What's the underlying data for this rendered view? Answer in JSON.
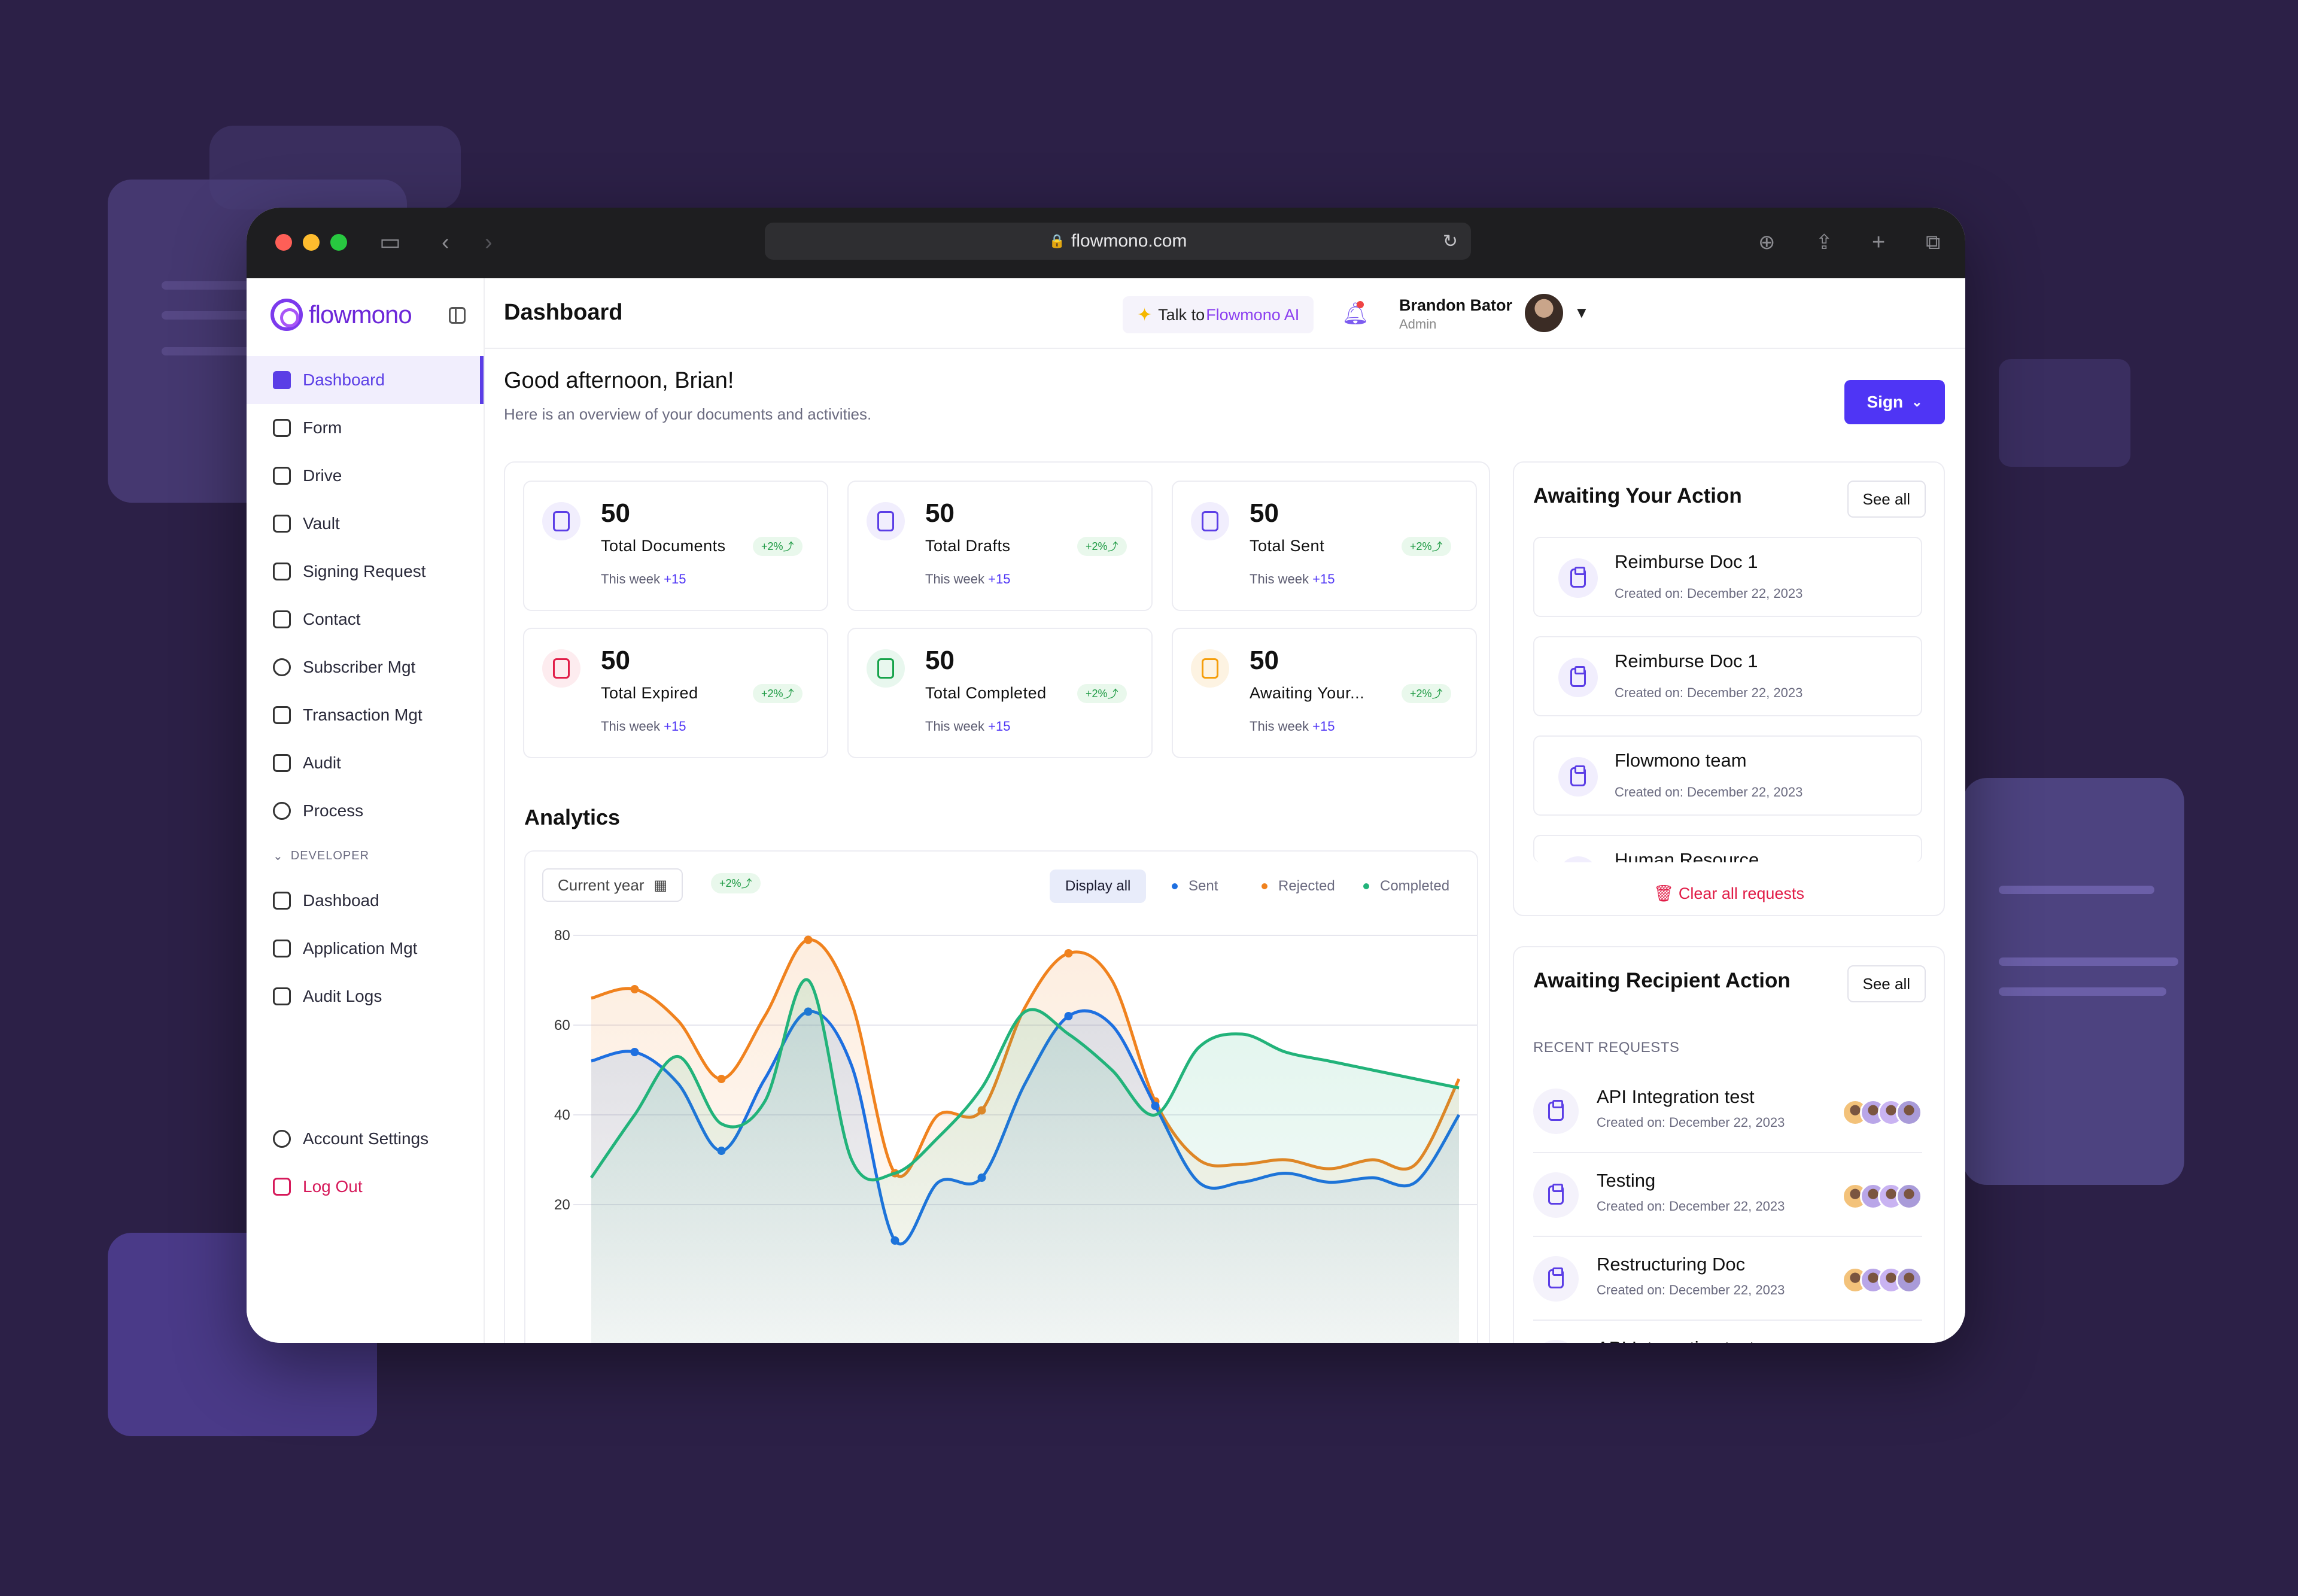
{
  "browser": {
    "url": "flowmono.com"
  },
  "app": {
    "logo_text": "flowmono",
    "page_title": "Dashboard"
  },
  "sidebar": {
    "items": [
      {
        "label": "Dashboard",
        "icon": "home-icon",
        "active": true
      },
      {
        "label": "Form",
        "icon": "clipboard-icon"
      },
      {
        "label": "Drive",
        "icon": "drive-icon"
      },
      {
        "label": "Vault",
        "icon": "lock-icon"
      },
      {
        "label": "Signing Request",
        "icon": "signature-icon"
      },
      {
        "label": "Contact",
        "icon": "contact-icon"
      },
      {
        "label": "Subscriber  Mgt",
        "icon": "user-gear-icon"
      },
      {
        "label": "Transaction Mgt",
        "icon": "receipt-icon"
      },
      {
        "label": "Audit",
        "icon": "checklist-icon"
      },
      {
        "label": "Process",
        "icon": "process-icon"
      }
    ],
    "developer_section": "DEVELOPER",
    "developer_items": [
      {
        "label": "Dashboad",
        "icon": "home-outline-icon"
      },
      {
        "label": "Application Mgt",
        "icon": "app-code-icon"
      },
      {
        "label": "Audit Logs",
        "icon": "clipboard-list-icon"
      }
    ],
    "account_settings": "Account Settings",
    "logout": "Log Out"
  },
  "header": {
    "ai_prefix": "Talk to ",
    "ai_brand": "Flowmono AI",
    "user_name": "Brandon Bator",
    "user_role": "Admin"
  },
  "welcome": {
    "greeting": "Good afternoon, Brian!",
    "subtitle": "Here is an overview of your documents and activities.",
    "sign_label": "Sign"
  },
  "stats": [
    {
      "value": "50",
      "label": "Total  Documents",
      "badge": "+2%",
      "week": "This week",
      "delta": "+15",
      "color": "#5b3ee6",
      "bg": "#f1eefd"
    },
    {
      "value": "50",
      "label": "Total  Drafts",
      "badge": "+2%",
      "week": "This week",
      "delta": "+15",
      "color": "#5b3ee6",
      "bg": "#f1eefd"
    },
    {
      "value": "50",
      "label": "Total  Sent",
      "badge": "+2%",
      "week": "This week",
      "delta": "+15",
      "color": "#5b3ee6",
      "bg": "#f1eefd"
    },
    {
      "value": "50",
      "label": "Total  Expired",
      "badge": "+2%",
      "week": "This week",
      "delta": "+15",
      "color": "#e11d48",
      "bg": "#fdecef"
    },
    {
      "value": "50",
      "label": "Total  Completed",
      "badge": "+2%",
      "week": "This week",
      "delta": "+15",
      "color": "#16a34a",
      "bg": "#e8f7ee"
    },
    {
      "value": "50",
      "label": "Awaiting Your...",
      "badge": "+2%",
      "week": "This week",
      "delta": "+15",
      "color": "#f59e0b",
      "bg": "#fdf3e2"
    }
  ],
  "analytics": {
    "title": "Analytics",
    "period": "Current year",
    "badge": "+2%",
    "display_all": "Display all",
    "legend": [
      {
        "name": "Sent",
        "color": "#1d6fe0"
      },
      {
        "name": "Rejected",
        "color": "#f0821e"
      },
      {
        "name": "Completed",
        "color": "#22b37a"
      }
    ]
  },
  "chart_data": {
    "type": "area",
    "y_ticks": [
      "80",
      "60",
      "40",
      "20"
    ],
    "ylim": [
      0,
      80
    ],
    "grid": true,
    "series": [
      {
        "name": "Rejected",
        "color": "#f0821e",
        "x": [
          0,
          5,
          10,
          15,
          20,
          25,
          30,
          35,
          40,
          45,
          50,
          55,
          60,
          65,
          70,
          75,
          80,
          85,
          90,
          95,
          100
        ],
        "values": [
          66,
          68,
          61,
          48,
          62,
          79,
          65,
          27,
          40,
          41,
          64,
          76,
          70,
          43,
          30,
          29,
          30,
          28,
          30,
          29,
          48
        ]
      },
      {
        "name": "Sent",
        "color": "#1d6fe0",
        "x": [
          0,
          5,
          10,
          15,
          20,
          25,
          30,
          35,
          40,
          45,
          50,
          55,
          60,
          65,
          70,
          75,
          80,
          85,
          90,
          95,
          100
        ],
        "values": [
          52,
          54,
          47,
          32,
          48,
          63,
          51,
          12,
          25,
          26,
          47,
          62,
          60,
          42,
          25,
          25,
          27,
          25,
          26,
          25,
          40
        ]
      },
      {
        "name": "Completed",
        "color": "#22b37a",
        "x": [
          0,
          5,
          10,
          15,
          20,
          25,
          30,
          35,
          40,
          45,
          50,
          55,
          60,
          65,
          70,
          75,
          80,
          85,
          90,
          95,
          100
        ],
        "values": [
          26,
          40,
          53,
          38,
          43,
          70,
          30,
          27,
          35,
          46,
          63,
          58,
          50,
          40,
          55,
          58,
          54,
          52,
          50,
          48,
          46
        ]
      }
    ]
  },
  "awaiting_action": {
    "title": "Awaiting Your Action",
    "see_all": "See all",
    "items": [
      {
        "title": "Reimburse Doc 1",
        "date": "Created on: December 22, 2023"
      },
      {
        "title": "Reimburse Doc 1",
        "date": "Created on: December 22, 2023"
      },
      {
        "title": "Flowmono team",
        "date": "Created on: December 22, 2023"
      },
      {
        "title": "Human Resource",
        "date": ""
      }
    ],
    "clear_all": "Clear all requests"
  },
  "awaiting_recipient": {
    "title": "Awaiting Recipient Action",
    "see_all": "See all",
    "recent_label": "RECENT REQUESTS",
    "items": [
      {
        "title": "API Integration test",
        "date": "Created on: December 22, 2023"
      },
      {
        "title": "Testing",
        "date": "Created on: December 22, 2023"
      },
      {
        "title": "Restructuring Doc",
        "date": "Created on: December 22, 2023"
      },
      {
        "title": "API Integration test",
        "date": ""
      }
    ]
  }
}
